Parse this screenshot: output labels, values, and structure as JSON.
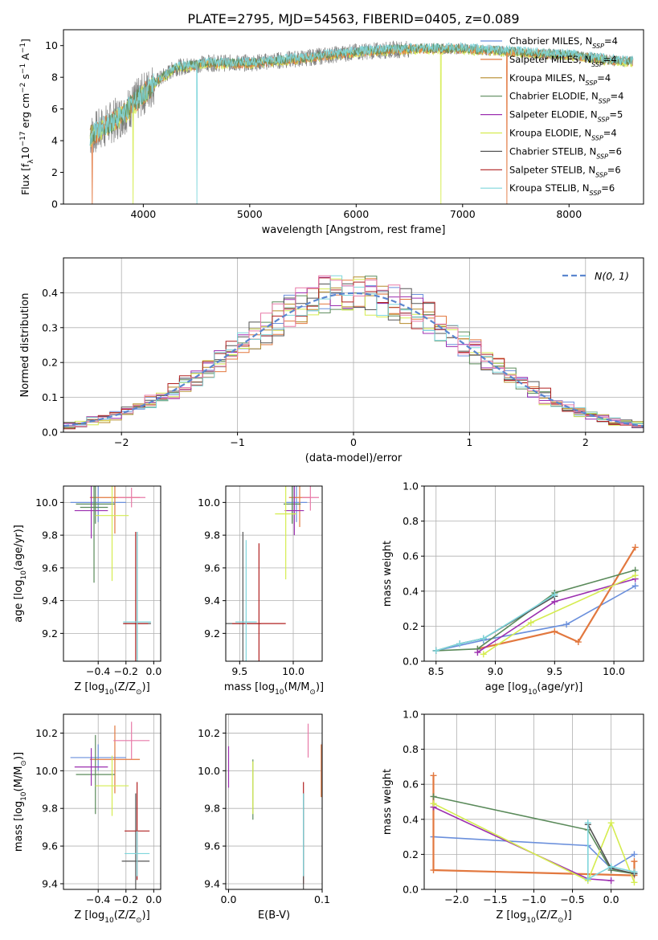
{
  "figure_title": "PLATE=2795, MJD=54563, FIBERID=0405, z=0.089",
  "colors": {
    "chabrier_miles": "#6a8fdc",
    "salpeter_miles": "#e2783f",
    "kroupa_miles": "#b58a2a",
    "chabrier_elodie": "#5a8a5a",
    "salpeter_elodie": "#9c2fb0",
    "kroupa_elodie": "#d5ec50",
    "chabrier_stelib": "#555555",
    "salpeter_stelib": "#b02020",
    "kroupa_stelib": "#7fd6dc",
    "pink": "#e87aa8",
    "spectrum_data": "#808080"
  },
  "chart_data": [
    {
      "id": "spectrum",
      "type": "line",
      "xlabel": "wavelength [Angstrom, rest frame]",
      "ylabel": "Flux [f_λ 10^-17 erg cm^-2 s^-1 A^-1]",
      "xlim": [
        3250,
        8700
      ],
      "ylim": [
        0,
        11
      ],
      "xticks": [
        4000,
        5000,
        6000,
        7000,
        8000
      ],
      "yticks": [
        0,
        2,
        4,
        6,
        8,
        10
      ],
      "continuum": {
        "x": [
          3500,
          3800,
          4100,
          4300,
          4600,
          5000,
          5500,
          6000,
          6500,
          7000,
          7500,
          8000,
          8500
        ],
        "y": [
          4.3,
          5.6,
          7.6,
          8.6,
          8.9,
          8.9,
          9.2,
          9.6,
          9.8,
          9.8,
          9.6,
          9.4,
          9.0
        ]
      },
      "legend": [
        {
          "label": "Chabrier MILES, N_SSP=4",
          "color_key": "chabrier_miles"
        },
        {
          "label": "Salpeter MILES, N_SSP=4",
          "color_key": "salpeter_miles"
        },
        {
          "label": "Kroupa MILES, N_SSP=4",
          "color_key": "kroupa_miles"
        },
        {
          "label": "Chabrier ELODIE, N_SSP=4",
          "color_key": "chabrier_elodie"
        },
        {
          "label": "Salpeter ELODIE, N_SSP=5",
          "color_key": "salpeter_elodie"
        },
        {
          "label": "Kroupa ELODIE, N_SSP=4",
          "color_key": "kroupa_elodie"
        },
        {
          "label": "Chabrier STELIB, N_SSP=6",
          "color_key": "chabrier_stelib"
        },
        {
          "label": "Salpeter STELIB, N_SSP=6",
          "color_key": "salpeter_stelib"
        },
        {
          "label": "Kroupa STELIB, N_SSP=6",
          "color_key": "kroupa_stelib"
        }
      ]
    },
    {
      "id": "residuals",
      "type": "histogram",
      "xlabel": "(data-model)/error",
      "ylabel": "Normed distribution",
      "xlim": [
        -2.5,
        2.5
      ],
      "ylim": [
        0,
        0.5
      ],
      "xticks": [
        -2,
        -1,
        0,
        1,
        2
      ],
      "yticks": [
        0.0,
        0.1,
        0.2,
        0.3,
        0.4
      ],
      "bin_width": 0.1,
      "gaussian_label": "N(0, 1)",
      "grid": true
    },
    {
      "id": "age_vs_Z",
      "type": "errorbar",
      "xlabel": "Z [log10(Z/Z⊙)]",
      "ylabel": "age [log10(age/yr)]",
      "xlim": [
        -0.65,
        0.05
      ],
      "ylim": [
        9.03,
        10.1
      ],
      "xticks": [
        -0.4,
        -0.2,
        0.0
      ],
      "yticks": [
        9.2,
        9.4,
        9.6,
        9.8,
        10.0
      ],
      "points": [
        {
          "x": -0.4,
          "y": 10.0,
          "xerr": 0.2,
          "yerr": 0.12,
          "c": "chabrier_miles"
        },
        {
          "x": -0.28,
          "y": 10.03,
          "xerr": 0.18,
          "yerr": 0.22,
          "c": "salpeter_miles"
        },
        {
          "x": -0.42,
          "y": 9.99,
          "xerr": 0.14,
          "yerr": 0.12,
          "c": "chabrier_elodie"
        },
        {
          "x": -0.45,
          "y": 9.95,
          "xerr": 0.12,
          "yerr": 0.17,
          "c": "salpeter_elodie"
        },
        {
          "x": -0.3,
          "y": 9.92,
          "xerr": 0.12,
          "yerr": 0.4,
          "c": "kroupa_elodie"
        },
        {
          "x": -0.16,
          "y": 10.03,
          "xerr": 0.1,
          "yerr": 0.06,
          "c": "pink"
        },
        {
          "x": -0.12,
          "y": 9.26,
          "xerr": 0.1,
          "yerr": 0.56,
          "c": "chabrier_stelib"
        },
        {
          "x": -0.13,
          "y": 9.26,
          "xerr": 0.09,
          "yerr": 0.56,
          "c": "salpeter_stelib"
        },
        {
          "x": -0.12,
          "y": 9.27,
          "xerr": 0.1,
          "yerr": 0.55,
          "c": "kroupa_stelib"
        },
        {
          "x": -0.43,
          "y": 9.97,
          "xerr": 0.1,
          "yerr": 0.46,
          "c": "chabrier_elodie"
        }
      ]
    },
    {
      "id": "age_vs_mass",
      "type": "errorbar",
      "xlabel": "mass [log10(M/M⊙)]",
      "ylabel": "",
      "xlim": [
        9.37,
        10.27
      ],
      "ylim": [
        9.03,
        10.1
      ],
      "xticks": [
        9.5,
        10.0
      ],
      "yticks": [
        9.2,
        9.4,
        9.6,
        9.8,
        10.0
      ],
      "points": [
        {
          "x": 10.03,
          "y": 10.0,
          "xerr": 0.1,
          "yerr": 0.12,
          "c": "chabrier_miles"
        },
        {
          "x": 10.06,
          "y": 10.03,
          "xerr": 0.1,
          "yerr": 0.18,
          "c": "salpeter_miles"
        },
        {
          "x": 9.99,
          "y": 9.99,
          "xerr": 0.08,
          "yerr": 0.12,
          "c": "chabrier_elodie"
        },
        {
          "x": 10.01,
          "y": 9.95,
          "xerr": 0.09,
          "yerr": 0.15,
          "c": "salpeter_elodie"
        },
        {
          "x": 9.93,
          "y": 9.93,
          "xerr": 0.1,
          "yerr": 0.4,
          "c": "kroupa_elodie"
        },
        {
          "x": 10.16,
          "y": 10.03,
          "xerr": 0.08,
          "yerr": 0.08,
          "c": "pink"
        },
        {
          "x": 9.53,
          "y": 9.26,
          "xerr": 0.17,
          "yerr": 0.56,
          "c": "chabrier_stelib"
        },
        {
          "x": 9.68,
          "y": 9.26,
          "xerr": 0.25,
          "yerr": 0.49,
          "c": "salpeter_stelib"
        },
        {
          "x": 9.56,
          "y": 9.27,
          "xerr": 0.1,
          "yerr": 0.5,
          "c": "kroupa_stelib"
        }
      ]
    },
    {
      "id": "weight_vs_age",
      "type": "line",
      "xlabel": "age [log10(age/yr)]",
      "ylabel": "mass weight",
      "xlim": [
        8.4,
        10.25
      ],
      "ylim": [
        0,
        1
      ],
      "xticks": [
        8.5,
        9.0,
        9.5,
        10.0
      ],
      "yticks": [
        0.0,
        0.2,
        0.4,
        0.6,
        0.8,
        1.0
      ],
      "series": [
        {
          "c": "chabrier_miles",
          "x": [
            8.5,
            8.9,
            9.6,
            10.18
          ],
          "y": [
            0.06,
            0.12,
            0.21,
            0.43
          ]
        },
        {
          "c": "salpeter_miles",
          "x": [
            8.85,
            9.5,
            9.7,
            10.18
          ],
          "y": [
            0.07,
            0.17,
            0.11,
            0.65
          ]
        },
        {
          "c": "chabrier_elodie",
          "x": [
            8.5,
            8.85,
            9.5,
            10.18
          ],
          "y": [
            0.06,
            0.07,
            0.39,
            0.52
          ]
        },
        {
          "c": "salpeter_elodie",
          "x": [
            8.85,
            9.5,
            10.18
          ],
          "y": [
            0.05,
            0.34,
            0.47
          ]
        },
        {
          "c": "kroupa_elodie",
          "x": [
            8.9,
            9.3,
            10.18
          ],
          "y": [
            0.04,
            0.22,
            0.49
          ]
        },
        {
          "c": "chabrier_stelib",
          "x": [
            8.5,
            8.7,
            8.9,
            9.5
          ],
          "y": [
            0.06,
            0.1,
            0.13,
            0.37
          ]
        },
        {
          "c": "kroupa_stelib",
          "x": [
            8.5,
            8.7,
            8.9,
            9.5
          ],
          "y": [
            0.06,
            0.1,
            0.13,
            0.38
          ]
        }
      ]
    },
    {
      "id": "mass_vs_Z",
      "type": "errorbar",
      "xlabel": "Z [log10(Z/Z⊙)]",
      "ylabel": "mass [log10(M/M⊙)]",
      "xlim": [
        -0.65,
        0.05
      ],
      "ylim": [
        9.37,
        10.3
      ],
      "xticks": [
        -0.4,
        -0.2,
        0.0
      ],
      "yticks": [
        9.4,
        9.6,
        9.8,
        10.0,
        10.2
      ],
      "points": [
        {
          "x": -0.4,
          "y": 10.07,
          "xerr": 0.2,
          "yerr": 0.07,
          "c": "chabrier_miles"
        },
        {
          "x": -0.28,
          "y": 10.06,
          "xerr": 0.18,
          "yerr": 0.18,
          "c": "salpeter_miles"
        },
        {
          "x": -0.42,
          "y": 9.98,
          "xerr": 0.14,
          "yerr": 0.21,
          "c": "chabrier_elodie"
        },
        {
          "x": -0.45,
          "y": 10.02,
          "xerr": 0.12,
          "yerr": 0.1,
          "c": "salpeter_elodie"
        },
        {
          "x": -0.3,
          "y": 9.92,
          "xerr": 0.12,
          "yerr": 0.16,
          "c": "kroupa_elodie"
        },
        {
          "x": -0.16,
          "y": 10.16,
          "xerr": 0.13,
          "yerr": 0.1,
          "c": "pink"
        },
        {
          "x": -0.13,
          "y": 9.52,
          "xerr": 0.1,
          "yerr": 0.36,
          "c": "chabrier_stelib"
        },
        {
          "x": -0.12,
          "y": 9.68,
          "xerr": 0.09,
          "yerr": 0.26,
          "c": "salpeter_stelib"
        },
        {
          "x": -0.12,
          "y": 9.56,
          "xerr": 0.09,
          "yerr": 0.12,
          "c": "kroupa_stelib"
        }
      ]
    },
    {
      "id": "mass_vs_ebv",
      "type": "errorbar",
      "xlabel": "E(B-V)",
      "ylabel": "",
      "xlim": [
        -0.003,
        0.1
      ],
      "ylim": [
        9.37,
        10.3
      ],
      "xticks": [
        0.0,
        0.1
      ],
      "yticks": [
        9.4,
        9.6,
        9.8,
        10.0,
        10.2
      ],
      "points": [
        {
          "x": 0.0,
          "y": 10.02,
          "xerr": 0,
          "yerr": 0.11,
          "c": "salpeter_elodie"
        },
        {
          "x": 0.026,
          "y": 9.9,
          "xerr": 0,
          "yerr": 0.16,
          "c": "chabrier_elodie"
        },
        {
          "x": 0.026,
          "y": 9.91,
          "xerr": 0,
          "yerr": 0.14,
          "c": "kroupa_elodie"
        },
        {
          "x": 0.085,
          "y": 10.16,
          "xerr": 0,
          "yerr": 0.09,
          "c": "pink"
        },
        {
          "x": 0.08,
          "y": 9.67,
          "xerr": 0,
          "yerr": 0.27,
          "c": "salpeter_stelib"
        },
        {
          "x": 0.08,
          "y": 9.52,
          "xerr": 0,
          "yerr": 0.36,
          "c": "chabrier_stelib"
        },
        {
          "x": 0.08,
          "y": 9.66,
          "xerr": 0,
          "yerr": 0.22,
          "c": "kroupa_stelib"
        },
        {
          "x": 0.099,
          "y": 10.0,
          "xerr": 0,
          "yerr": 0.14,
          "c": "salpeter_miles"
        },
        {
          "x": 0.1,
          "y": 10.05,
          "xerr": 0,
          "yerr": 0.1,
          "c": "chabrier_miles"
        }
      ]
    },
    {
      "id": "weight_vs_Z",
      "type": "line",
      "xlabel": "Z [log10(Z/Z⊙)]",
      "ylabel": "mass weight",
      "xlim": [
        -2.42,
        0.42
      ],
      "ylim": [
        0,
        1
      ],
      "xticks": [
        -2.0,
        -1.5,
        -1.0,
        -0.5,
        0.0
      ],
      "yticks": [
        0.0,
        0.2,
        0.4,
        0.6,
        0.8,
        1.0
      ],
      "series": [
        {
          "c": "chabrier_miles",
          "x": [
            -2.3,
            -0.3,
            0.0,
            0.3
          ],
          "y": [
            0.3,
            0.25,
            0.12,
            0.2
          ]
        },
        {
          "c": "salpeter_miles",
          "x": [
            -2.3,
            -2.3,
            0.3,
            0.3
          ],
          "y": [
            0.65,
            0.11,
            0.08,
            0.16
          ]
        },
        {
          "c": "chabrier_elodie",
          "x": [
            -2.3,
            -0.3,
            0.0,
            0.3
          ],
          "y": [
            0.53,
            0.34,
            0.11,
            0.09
          ]
        },
        {
          "c": "salpeter_elodie",
          "x": [
            -2.3,
            -0.3,
            0.0
          ],
          "y": [
            0.47,
            0.06,
            0.05
          ]
        },
        {
          "c": "kroupa_elodie",
          "x": [
            -2.3,
            -0.3,
            0.0,
            0.3
          ],
          "y": [
            0.49,
            0.05,
            0.38,
            0.04
          ]
        },
        {
          "c": "chabrier_stelib",
          "x": [
            -0.3,
            0.0,
            0.3
          ],
          "y": [
            0.37,
            0.12,
            0.09
          ]
        },
        {
          "c": "kroupa_stelib",
          "x": [
            -0.3,
            -0.3,
            0.0,
            0.3
          ],
          "y": [
            0.38,
            0.06,
            0.13,
            0.1
          ]
        }
      ]
    }
  ]
}
